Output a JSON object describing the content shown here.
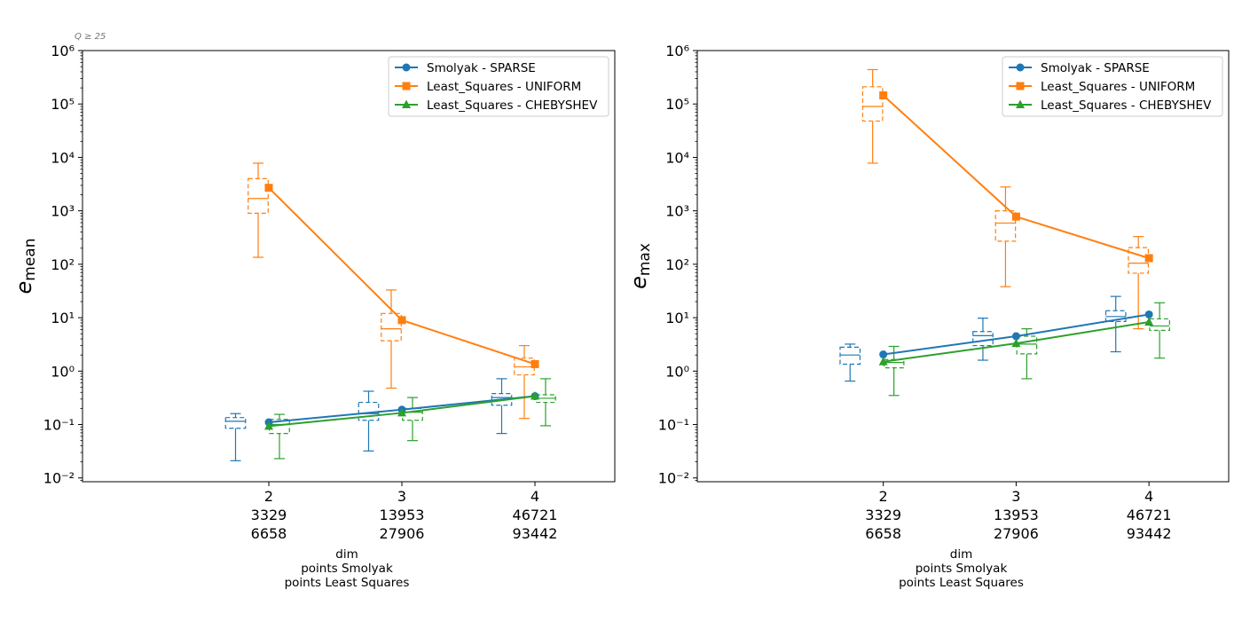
{
  "corner_note": "Q ≥ 25",
  "colors": {
    "SPARSE": "#1f77b4",
    "UNIFORM": "#ff7f0e",
    "CHEBYSHEV": "#2ca02c"
  },
  "chart_data": [
    {
      "type": "line",
      "ylabel_base": "e",
      "ylabel_sub": "mean",
      "yscale": "log",
      "ylim": [
        0.0085,
        1000000
      ],
      "xlim": [
        0.6,
        4.6
      ],
      "y_tick_exponents": [
        -2,
        -1,
        0,
        1,
        2,
        3,
        4,
        5,
        6
      ],
      "x_ticks": [
        {
          "x": 2,
          "lines": [
            "2",
            "3329",
            "6658"
          ]
        },
        {
          "x": 3,
          "lines": [
            "3",
            "13953",
            "27906"
          ]
        },
        {
          "x": 4,
          "lines": [
            "4",
            "46721",
            "93442"
          ]
        }
      ],
      "xlabel_lines": [
        "dim",
        "points Smolyak",
        "points Least Squares"
      ],
      "legend_position": "upper-right",
      "grid": false,
      "series": [
        {
          "name": "Smolyak - SPARSE",
          "key": "SPARSE",
          "marker": "circle",
          "x": [
            2,
            3,
            4
          ],
          "y": [
            0.11,
            0.19,
            0.34
          ],
          "box_offset": -0.25,
          "boxes": [
            {
              "whislo": 0.021,
              "q1": 0.085,
              "med": 0.115,
              "q3": 0.135,
              "whishi": 0.16
            },
            {
              "whislo": 0.032,
              "q1": 0.12,
              "med": 0.16,
              "q3": 0.26,
              "whishi": 0.42
            },
            {
              "whislo": 0.068,
              "q1": 0.23,
              "med": 0.32,
              "q3": 0.38,
              "whishi": 0.72
            }
          ]
        },
        {
          "name": "Least_Squares - UNIFORM",
          "key": "UNIFORM",
          "marker": "square",
          "x": [
            2,
            3,
            4
          ],
          "y": [
            2700,
            9.0,
            1.35
          ],
          "box_offset": -0.08,
          "boxes": [
            {
              "whislo": 135,
              "q1": 900,
              "med": 1700,
              "q3": 4000,
              "whishi": 7800
            },
            {
              "whislo": 0.48,
              "q1": 3.7,
              "med": 6.2,
              "q3": 12,
              "whishi": 33
            },
            {
              "whislo": 0.13,
              "q1": 0.85,
              "med": 1.2,
              "q3": 1.75,
              "whishi": 3.0
            }
          ]
        },
        {
          "name": "Least_Squares - CHEBYSHEV",
          "key": "CHEBYSHEV",
          "marker": "triangle",
          "x": [
            2,
            3,
            4
          ],
          "y": [
            0.093,
            0.165,
            0.34
          ],
          "box_offset": 0.08,
          "boxes": [
            {
              "whislo": 0.023,
              "q1": 0.068,
              "med": 0.1,
              "q3": 0.125,
              "whishi": 0.155
            },
            {
              "whislo": 0.05,
              "q1": 0.12,
              "med": 0.17,
              "q3": 0.2,
              "whishi": 0.32
            },
            {
              "whislo": 0.095,
              "q1": 0.26,
              "med": 0.31,
              "q3": 0.36,
              "whishi": 0.72
            }
          ]
        }
      ]
    },
    {
      "type": "line",
      "ylabel_base": "e",
      "ylabel_sub": "max",
      "yscale": "log",
      "ylim": [
        0.0085,
        1000000
      ],
      "xlim": [
        0.6,
        4.6
      ],
      "y_tick_exponents": [
        -2,
        -1,
        0,
        1,
        2,
        3,
        4,
        5,
        6
      ],
      "x_ticks": [
        {
          "x": 2,
          "lines": [
            "2",
            "3329",
            "6658"
          ]
        },
        {
          "x": 3,
          "lines": [
            "3",
            "13953",
            "27906"
          ]
        },
        {
          "x": 4,
          "lines": [
            "4",
            "46721",
            "93442"
          ]
        }
      ],
      "xlabel_lines": [
        "dim",
        "points Smolyak",
        "points Least Squares"
      ],
      "legend_position": "upper-right",
      "grid": false,
      "series": [
        {
          "name": "Smolyak - SPARSE",
          "key": "SPARSE",
          "marker": "circle",
          "x": [
            2,
            3,
            4
          ],
          "y": [
            2.05,
            4.5,
            11.5
          ],
          "box_offset": -0.25,
          "boxes": [
            {
              "whislo": 0.65,
              "q1": 1.35,
              "med": 2.0,
              "q3": 2.8,
              "whishi": 3.2
            },
            {
              "whislo": 1.6,
              "q1": 3.0,
              "med": 4.6,
              "q3": 5.5,
              "whishi": 9.8
            },
            {
              "whislo": 2.3,
              "q1": 8.5,
              "med": 10.5,
              "q3": 13.5,
              "whishi": 25
            }
          ]
        },
        {
          "name": "Least_Squares - UNIFORM",
          "key": "UNIFORM",
          "marker": "square",
          "x": [
            2,
            3,
            4
          ],
          "y": [
            145000,
            780,
            130
          ],
          "box_offset": -0.08,
          "boxes": [
            {
              "whislo": 7800,
              "q1": 48000,
              "med": 90000,
              "q3": 210000,
              "whishi": 440000
            },
            {
              "whislo": 38,
              "q1": 270,
              "med": 590,
              "q3": 1000,
              "whishi": 2800
            },
            {
              "whislo": 6.2,
              "q1": 68,
              "med": 105,
              "q3": 205,
              "whishi": 330
            }
          ]
        },
        {
          "name": "Least_Squares - CHEBYSHEV",
          "key": "CHEBYSHEV",
          "marker": "triangle",
          "x": [
            2,
            3,
            4
          ],
          "y": [
            1.5,
            3.3,
            8.3
          ],
          "box_offset": 0.08,
          "boxes": [
            {
              "whislo": 0.35,
              "q1": 1.15,
              "med": 1.45,
              "q3": 1.65,
              "whishi": 2.9
            },
            {
              "whislo": 0.72,
              "q1": 2.1,
              "med": 3.2,
              "q3": 4.5,
              "whishi": 6.2
            },
            {
              "whislo": 1.75,
              "q1": 5.8,
              "med": 7.0,
              "q3": 9.5,
              "whishi": 19
            }
          ]
        }
      ]
    }
  ]
}
